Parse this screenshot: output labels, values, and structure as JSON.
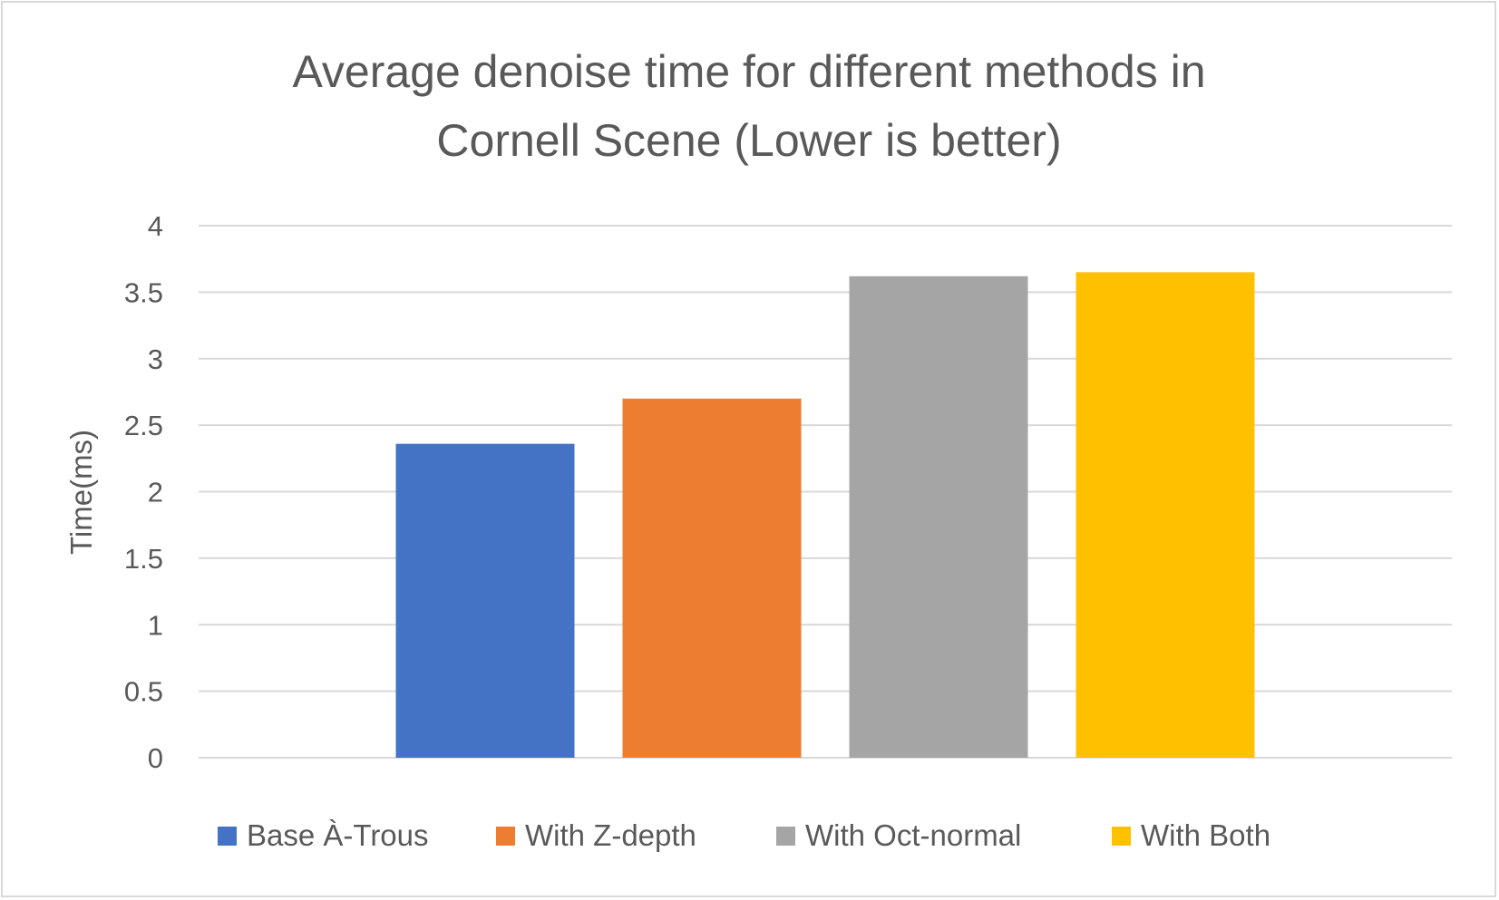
{
  "chart_data": {
    "type": "bar",
    "title_lines": [
      "Average denoise time for different methods in",
      "Cornell Scene (Lower is better)"
    ],
    "xlabel": "",
    "ylabel": "Time(ms)",
    "ylim": [
      0,
      4
    ],
    "yticks": [
      "0",
      "0.5",
      "1",
      "1.5",
      "2",
      "2.5",
      "3",
      "3.5",
      "4"
    ],
    "gridlines": true,
    "legend_position": "bottom",
    "series": [
      {
        "name": "Base À-Trous",
        "value": 2.36,
        "color": "#4472c4"
      },
      {
        "name": "With Z-depth",
        "value": 2.7,
        "color": "#ed7d31"
      },
      {
        "name": "With Oct-normal",
        "value": 3.62,
        "color": "#a5a5a5"
      },
      {
        "name": "With Both",
        "value": 3.65,
        "color": "#ffc000"
      }
    ]
  }
}
